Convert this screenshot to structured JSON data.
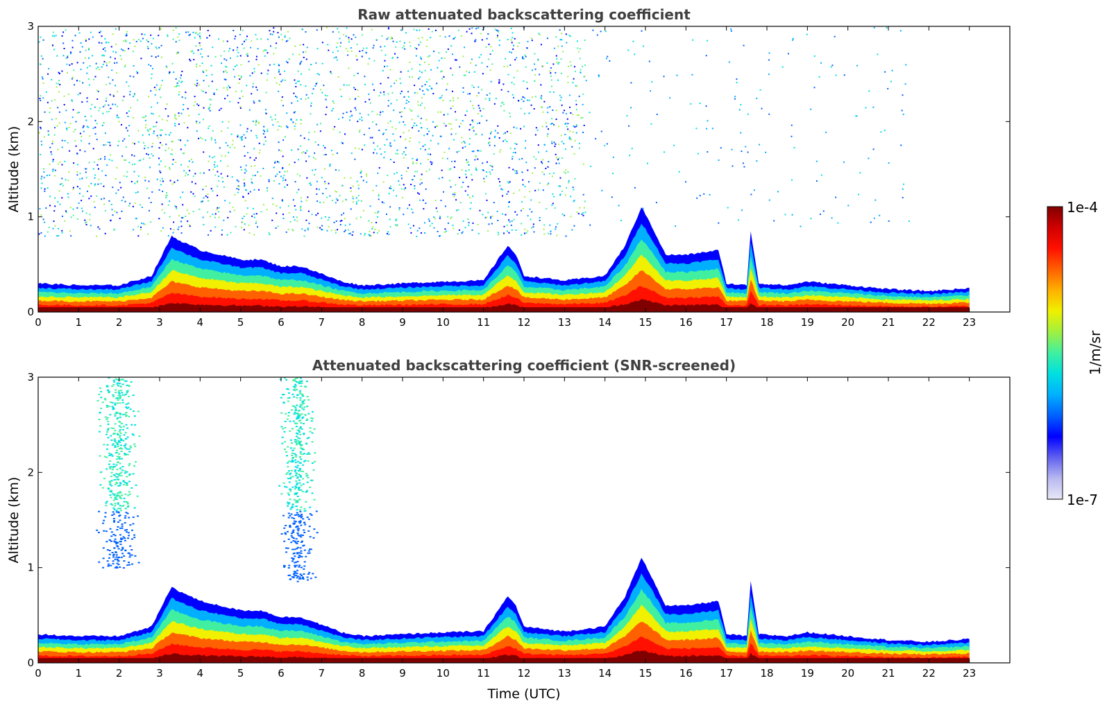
{
  "chart_data": [
    {
      "type": "heatmap",
      "title": "Raw attenuated backscattering coefficient",
      "ylabel": "Altitude (km)",
      "xlabel": "",
      "xlim": [
        0,
        24
      ],
      "ylim": [
        0,
        3
      ],
      "x_ticks": [
        "0",
        "1",
        "2",
        "3",
        "4",
        "5",
        "6",
        "7",
        "8",
        "9",
        "10",
        "11",
        "12",
        "13",
        "14",
        "15",
        "16",
        "17",
        "18",
        "19",
        "20",
        "21",
        "22",
        "23"
      ],
      "y_ticks": [
        "0",
        "1",
        "2",
        "3"
      ],
      "data_end_time": 23,
      "layer_top_profile": {
        "time": [
          0,
          1,
          2,
          2.8,
          3.3,
          3.5,
          4,
          4.5,
          5,
          5.5,
          6,
          6.5,
          7,
          7.5,
          8,
          9,
          10,
          11,
          11.6,
          11.8,
          12,
          13,
          14,
          14.5,
          14.9,
          15.1,
          15.5,
          16,
          16.8,
          17,
          17.5,
          17.6,
          17.8,
          18.5,
          19,
          20,
          21,
          22,
          23
        ],
        "top_km": [
          0.3,
          0.28,
          0.28,
          0.38,
          0.8,
          0.75,
          0.65,
          0.6,
          0.55,
          0.55,
          0.48,
          0.48,
          0.4,
          0.32,
          0.28,
          0.3,
          0.32,
          0.33,
          0.7,
          0.6,
          0.38,
          0.33,
          0.38,
          0.7,
          1.1,
          0.95,
          0.6,
          0.6,
          0.65,
          0.3,
          0.28,
          0.85,
          0.3,
          0.28,
          0.32,
          0.28,
          0.24,
          0.22,
          0.25
        ]
      },
      "noise_regions_km": {
        "min": 0.8,
        "max": 3,
        "time_range": [
          0,
          13.5
        ]
      }
    },
    {
      "type": "heatmap",
      "title": "Attenuated backscattering coefficient (SNR-screened)",
      "ylabel": "Altitude (km)",
      "xlabel": "Time (UTC)",
      "xlim": [
        0,
        24
      ],
      "ylim": [
        0,
        3
      ],
      "x_ticks": [
        "0",
        "1",
        "2",
        "3",
        "4",
        "5",
        "6",
        "7",
        "8",
        "9",
        "10",
        "11",
        "12",
        "13",
        "14",
        "15",
        "16",
        "17",
        "18",
        "19",
        "20",
        "21",
        "22",
        "23"
      ],
      "y_ticks": [
        "0",
        "1",
        "2",
        "3"
      ],
      "data_end_time": 23,
      "layer_top_profile": {
        "time": [
          0,
          1,
          2,
          2.8,
          3.3,
          3.5,
          4,
          4.5,
          5,
          5.5,
          6,
          6.5,
          7,
          7.5,
          8,
          9,
          10,
          11,
          11.6,
          11.8,
          12,
          13,
          14,
          14.5,
          14.9,
          15.1,
          15.5,
          16,
          16.8,
          17,
          17.5,
          17.6,
          17.8,
          18.5,
          19,
          20,
          21,
          22,
          23
        ],
        "top_km": [
          0.3,
          0.28,
          0.28,
          0.38,
          0.8,
          0.75,
          0.65,
          0.6,
          0.55,
          0.55,
          0.48,
          0.48,
          0.4,
          0.32,
          0.28,
          0.3,
          0.32,
          0.33,
          0.7,
          0.6,
          0.38,
          0.33,
          0.38,
          0.7,
          1.1,
          0.95,
          0.6,
          0.6,
          0.65,
          0.3,
          0.28,
          0.85,
          0.3,
          0.28,
          0.32,
          0.28,
          0.24,
          0.22,
          0.25
        ]
      },
      "cloud_columns": [
        {
          "time_range": [
            1.4,
            2.5
          ],
          "alt_range_km": [
            1.0,
            3.0
          ]
        },
        {
          "time_range": [
            5.9,
            6.9
          ],
          "alt_range_km": [
            0.85,
            3.0
          ]
        }
      ]
    }
  ],
  "colorbar": {
    "label": "1/m/sr",
    "max_label": "1e-4",
    "min_label": "1e-7",
    "colors": [
      "#e8e8f8",
      "#b8b8f0",
      "#6060f0",
      "#0000ff",
      "#0060ff",
      "#00b0ff",
      "#00e0e0",
      "#40f0a0",
      "#a0f040",
      "#f0f000",
      "#ffb000",
      "#ff6000",
      "#ff1000",
      "#d00000",
      "#800000"
    ]
  }
}
